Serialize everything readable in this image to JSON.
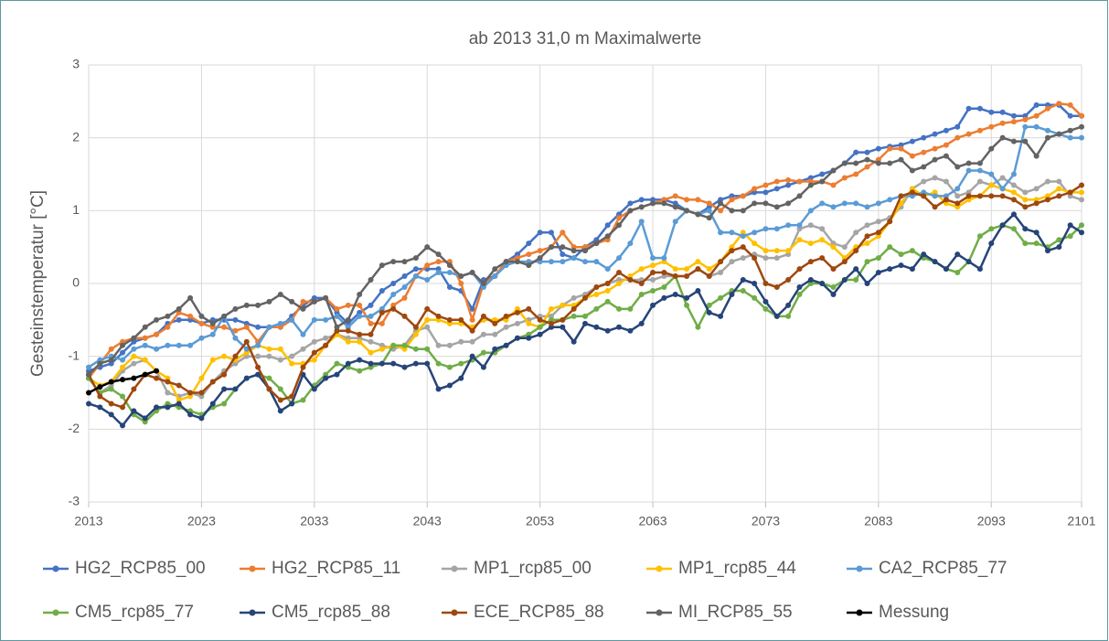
{
  "chart_data": {
    "type": "line",
    "title": "ab 2013    31,0 m Maximalwerte",
    "y_label": "Gesteinstemperatur [°C]",
    "x": [
      2013,
      2014,
      2015,
      2016,
      2017,
      2018,
      2019,
      2020,
      2021,
      2022,
      2023,
      2024,
      2025,
      2026,
      2027,
      2028,
      2029,
      2030,
      2031,
      2032,
      2033,
      2034,
      2035,
      2036,
      2037,
      2038,
      2039,
      2040,
      2041,
      2042,
      2043,
      2044,
      2045,
      2046,
      2047,
      2048,
      2049,
      2050,
      2051,
      2052,
      2053,
      2054,
      2055,
      2056,
      2057,
      2058,
      2059,
      2060,
      2061,
      2062,
      2063,
      2064,
      2065,
      2066,
      2067,
      2068,
      2069,
      2070,
      2071,
      2072,
      2073,
      2074,
      2075,
      2076,
      2077,
      2078,
      2079,
      2080,
      2081,
      2082,
      2083,
      2084,
      2085,
      2086,
      2087,
      2088,
      2089,
      2090,
      2091,
      2092,
      2093,
      2094,
      2095,
      2096,
      2097,
      2098,
      2099,
      2100,
      2101
    ],
    "xlim": [
      2013,
      2101
    ],
    "xticks": [
      2013,
      2023,
      2033,
      2043,
      2053,
      2063,
      2073,
      2083,
      2093,
      2101
    ],
    "ylim": [
      -3,
      3
    ],
    "yticks": [
      -3,
      -2,
      -1,
      0,
      1,
      2,
      3
    ],
    "grid": true,
    "legend": "bottom",
    "series": [
      {
        "name": "HG2_RCP85_00",
        "color": "#4472c4",
        "values": [
          -1.2,
          -1.15,
          -1.1,
          -0.95,
          -0.8,
          -0.75,
          -0.7,
          -0.55,
          -0.5,
          -0.5,
          -0.55,
          -0.5,
          -0.5,
          -0.5,
          -0.55,
          -0.6,
          -0.6,
          -0.6,
          -0.45,
          -0.3,
          -0.2,
          -0.2,
          -0.4,
          -0.55,
          -0.4,
          -0.3,
          -0.1,
          0.0,
          0.1,
          0.2,
          0.2,
          0.2,
          -0.05,
          -0.1,
          -0.35,
          0.05,
          0.1,
          0.3,
          0.4,
          0.55,
          0.7,
          0.7,
          0.4,
          0.35,
          0.5,
          0.6,
          0.8,
          0.95,
          1.1,
          1.15,
          1.15,
          1.15,
          1.1,
          1.0,
          0.95,
          1.05,
          1.15,
          1.2,
          1.2,
          1.25,
          1.25,
          1.3,
          1.35,
          1.4,
          1.45,
          1.5,
          1.55,
          1.65,
          1.8,
          1.8,
          1.85,
          1.88,
          1.9,
          1.95,
          2.0,
          2.05,
          2.1,
          2.15,
          2.4,
          2.4,
          2.35,
          2.35,
          2.3,
          2.3,
          2.45,
          2.45,
          2.45,
          2.3,
          2.3
        ]
      },
      {
        "name": "HG2_RCP85_11",
        "color": "#ed7d31",
        "values": [
          -1.3,
          -1.1,
          -0.9,
          -0.8,
          -0.75,
          -0.75,
          -0.7,
          -0.6,
          -0.4,
          -0.45,
          -0.55,
          -0.6,
          -0.6,
          -0.65,
          -0.6,
          -0.8,
          -0.6,
          -0.6,
          -0.5,
          -0.25,
          -0.25,
          -0.2,
          -0.35,
          -0.3,
          -0.3,
          -0.55,
          -0.55,
          -0.3,
          -0.2,
          0.1,
          0.25,
          0.3,
          0.3,
          0.0,
          -0.5,
          0.0,
          0.1,
          0.3,
          0.35,
          0.4,
          0.45,
          0.5,
          0.7,
          0.5,
          0.5,
          0.55,
          0.6,
          0.9,
          1.0,
          1.05,
          1.1,
          1.15,
          1.2,
          1.15,
          1.15,
          1.1,
          1.0,
          1.15,
          1.2,
          1.3,
          1.35,
          1.4,
          1.42,
          1.4,
          1.4,
          1.4,
          1.35,
          1.45,
          1.5,
          1.6,
          1.7,
          1.85,
          1.85,
          1.75,
          1.8,
          1.85,
          1.9,
          2.0,
          2.05,
          2.1,
          2.15,
          2.2,
          2.22,
          2.25,
          2.3,
          2.4,
          2.47,
          2.45,
          2.3
        ]
      },
      {
        "name": "MP1_rcp85_00",
        "color": "#a5a5a5",
        "values": [
          -1.3,
          -1.5,
          -1.4,
          -1.2,
          -1.1,
          -1.05,
          -1.2,
          -1.5,
          -1.55,
          -1.5,
          -1.55,
          -1.35,
          -1.2,
          -1.1,
          -1.0,
          -1.0,
          -1.0,
          -1.05,
          -1.0,
          -0.9,
          -0.8,
          -0.75,
          -0.7,
          -0.75,
          -0.75,
          -0.8,
          -0.85,
          -0.9,
          -0.85,
          -0.65,
          -0.6,
          -0.85,
          -0.85,
          -0.8,
          -0.8,
          -0.7,
          -0.7,
          -0.6,
          -0.55,
          -0.5,
          -0.45,
          -0.45,
          -0.3,
          -0.2,
          -0.15,
          -0.05,
          0.0,
          0.05,
          0.05,
          0.05,
          0.05,
          0.1,
          0.1,
          0.1,
          0.2,
          0.1,
          0.15,
          0.3,
          0.35,
          0.4,
          0.35,
          0.35,
          0.4,
          0.75,
          0.8,
          0.75,
          0.55,
          0.5,
          0.7,
          0.8,
          0.85,
          0.9,
          1.05,
          1.3,
          1.4,
          1.45,
          1.4,
          1.2,
          1.25,
          1.4,
          1.35,
          1.45,
          1.35,
          1.25,
          1.3,
          1.4,
          1.4,
          1.2,
          1.15
        ]
      },
      {
        "name": "MP1_rcp85_44",
        "color": "#ffc000",
        "values": [
          -1.3,
          -1.4,
          -1.35,
          -1.15,
          -1.0,
          -1.05,
          -1.2,
          -1.3,
          -1.6,
          -1.55,
          -1.3,
          -1.05,
          -1.0,
          -1.05,
          -0.95,
          -0.85,
          -0.9,
          -0.9,
          -1.1,
          -1.1,
          -1.05,
          -0.85,
          -0.7,
          -0.8,
          -0.8,
          -0.95,
          -0.9,
          -0.85,
          -0.9,
          -0.7,
          -0.5,
          -0.5,
          -0.55,
          -0.55,
          -0.6,
          -0.5,
          -0.5,
          -0.5,
          -0.35,
          -0.55,
          -0.6,
          -0.35,
          -0.3,
          -0.3,
          -0.2,
          -0.15,
          -0.1,
          0.0,
          0.1,
          0.2,
          0.25,
          0.3,
          0.2,
          0.2,
          0.3,
          0.2,
          0.3,
          0.5,
          0.7,
          0.55,
          0.45,
          0.45,
          0.45,
          0.6,
          0.55,
          0.6,
          0.5,
          0.35,
          0.5,
          0.55,
          0.65,
          0.85,
          1.1,
          1.3,
          1.2,
          1.25,
          1.1,
          1.05,
          1.15,
          1.2,
          1.35,
          1.3,
          1.25,
          1.15,
          1.15,
          1.2,
          1.3,
          1.25,
          1.25
        ]
      },
      {
        "name": "CA2_RCP85_77",
        "color": "#5b9bd5",
        "values": [
          -1.15,
          -1.05,
          -1.0,
          -1.05,
          -0.9,
          -0.85,
          -0.9,
          -0.85,
          -0.85,
          -0.85,
          -0.75,
          -0.7,
          -0.45,
          -0.75,
          -0.9,
          -0.85,
          -0.6,
          -0.55,
          -0.5,
          -0.7,
          -0.5,
          -0.5,
          -0.45,
          -0.6,
          -0.45,
          -0.45,
          -0.35,
          -0.15,
          -0.05,
          0.1,
          0.05,
          0.15,
          0.15,
          0.1,
          0.15,
          -0.05,
          0.1,
          0.25,
          0.3,
          0.3,
          0.3,
          0.3,
          0.3,
          0.35,
          0.3,
          0.3,
          0.2,
          0.35,
          0.55,
          0.85,
          0.35,
          0.35,
          0.85,
          1.0,
          0.95,
          1.0,
          0.7,
          0.7,
          0.65,
          0.7,
          0.75,
          0.75,
          0.8,
          0.8,
          1.0,
          1.1,
          1.05,
          1.1,
          1.1,
          1.05,
          1.1,
          1.15,
          1.2,
          1.2,
          1.25,
          1.2,
          1.2,
          1.3,
          1.55,
          1.55,
          1.5,
          1.3,
          1.5,
          2.15,
          2.15,
          2.1,
          2.05,
          2.0,
          2.0
        ]
      },
      {
        "name": "CM5_rcp85_77",
        "color": "#70ad47",
        "values": [
          -1.3,
          -1.5,
          -1.45,
          -1.55,
          -1.8,
          -1.9,
          -1.75,
          -1.65,
          -1.7,
          -1.75,
          -1.8,
          -1.7,
          -1.65,
          -1.45,
          -1.3,
          -1.25,
          -1.3,
          -1.45,
          -1.65,
          -1.6,
          -1.4,
          -1.25,
          -1.1,
          -1.15,
          -1.2,
          -1.15,
          -1.1,
          -0.85,
          -0.85,
          -0.9,
          -0.9,
          -1.1,
          -1.15,
          -1.1,
          -1.05,
          -0.95,
          -0.95,
          -0.85,
          -0.75,
          -0.7,
          -0.6,
          -0.5,
          -0.5,
          -0.45,
          -0.45,
          -0.35,
          -0.25,
          -0.35,
          -0.35,
          -0.15,
          -0.1,
          -0.05,
          0.1,
          -0.3,
          -0.6,
          -0.3,
          -0.2,
          -0.1,
          -0.1,
          -0.2,
          -0.35,
          -0.45,
          -0.45,
          -0.15,
          0.0,
          0.0,
          -0.05,
          0.05,
          0.05,
          0.3,
          0.35,
          0.5,
          0.4,
          0.45,
          0.35,
          0.3,
          0.2,
          0.15,
          0.3,
          0.65,
          0.75,
          0.8,
          0.75,
          0.55,
          0.55,
          0.5,
          0.6,
          0.65,
          0.8
        ]
      },
      {
        "name": "CM5_rcp85_88",
        "color": "#264478",
        "values": [
          -1.65,
          -1.7,
          -1.8,
          -1.95,
          -1.75,
          -1.85,
          -1.7,
          -1.7,
          -1.65,
          -1.8,
          -1.85,
          -1.65,
          -1.45,
          -1.45,
          -1.3,
          -1.25,
          -1.45,
          -1.75,
          -1.65,
          -1.25,
          -1.45,
          -1.3,
          -1.25,
          -1.1,
          -1.05,
          -1.1,
          -1.1,
          -1.1,
          -1.15,
          -1.1,
          -1.1,
          -1.45,
          -1.4,
          -1.3,
          -1.0,
          -1.15,
          -0.9,
          -0.85,
          -0.75,
          -0.75,
          -0.7,
          -0.6,
          -0.6,
          -0.8,
          -0.55,
          -0.6,
          -0.65,
          -0.6,
          -0.65,
          -0.55,
          -0.3,
          -0.2,
          -0.15,
          -0.2,
          -0.1,
          -0.4,
          -0.45,
          -0.15,
          0.05,
          0.0,
          -0.25,
          -0.45,
          -0.3,
          -0.05,
          0.05,
          0.0,
          -0.15,
          0.05,
          0.2,
          0.0,
          0.15,
          0.2,
          0.25,
          0.2,
          0.4,
          0.3,
          0.2,
          0.4,
          0.3,
          0.2,
          0.55,
          0.8,
          0.95,
          0.75,
          0.7,
          0.45,
          0.5,
          0.8,
          0.7
        ]
      },
      {
        "name": "ECE_RCP85_88",
        "color": "#9e480e",
        "values": [
          -1.25,
          -1.55,
          -1.65,
          -1.7,
          -1.45,
          -1.25,
          -1.3,
          -1.35,
          -1.4,
          -1.5,
          -1.5,
          -1.35,
          -1.25,
          -1.0,
          -0.8,
          -1.15,
          -1.45,
          -1.6,
          -1.55,
          -1.15,
          -0.95,
          -0.85,
          -0.65,
          -0.65,
          -0.7,
          -0.7,
          -0.4,
          -0.35,
          -0.45,
          -0.6,
          -0.35,
          -0.45,
          -0.5,
          -0.5,
          -0.65,
          -0.45,
          -0.55,
          -0.45,
          -0.4,
          -0.35,
          -0.5,
          -0.55,
          -0.5,
          -0.35,
          -0.2,
          -0.05,
          0.0,
          0.15,
          0.05,
          0.0,
          0.15,
          0.15,
          0.1,
          0.1,
          0.2,
          0.1,
          0.3,
          0.45,
          0.5,
          0.35,
          0.0,
          -0.05,
          0.05,
          0.2,
          0.3,
          0.35,
          0.2,
          0.3,
          0.45,
          0.65,
          0.7,
          0.85,
          1.2,
          1.25,
          1.2,
          1.05,
          1.15,
          1.1,
          1.2,
          1.2,
          1.2,
          1.2,
          1.15,
          1.05,
          1.1,
          1.15,
          1.2,
          1.25,
          1.35
        ]
      },
      {
        "name": "MI_RCP85_55",
        "color": "#636363",
        "values": [
          -1.25,
          -1.1,
          -1.05,
          -0.85,
          -0.75,
          -0.6,
          -0.5,
          -0.45,
          -0.35,
          -0.2,
          -0.45,
          -0.55,
          -0.45,
          -0.35,
          -0.3,
          -0.3,
          -0.25,
          -0.15,
          -0.25,
          -0.35,
          -0.25,
          -0.2,
          -0.6,
          -0.5,
          -0.15,
          0.05,
          0.25,
          0.3,
          0.3,
          0.35,
          0.5,
          0.4,
          0.25,
          0.1,
          0.15,
          0.0,
          0.2,
          0.3,
          0.3,
          0.25,
          0.35,
          0.5,
          0.5,
          0.45,
          0.45,
          0.55,
          0.65,
          0.8,
          1.0,
          1.05,
          1.1,
          1.1,
          1.05,
          1.0,
          0.95,
          0.9,
          1.1,
          1.0,
          1.0,
          1.1,
          1.1,
          1.05,
          1.1,
          1.2,
          1.35,
          1.4,
          1.55,
          1.65,
          1.65,
          1.7,
          1.65,
          1.65,
          1.7,
          1.55,
          1.6,
          1.7,
          1.75,
          1.6,
          1.65,
          1.65,
          1.85,
          2.0,
          1.95,
          1.95,
          1.75,
          2.0,
          2.05,
          2.1,
          2.15
        ]
      },
      {
        "name": "Messung",
        "color": "#000000",
        "values": [
          -1.5,
          -1.42,
          -1.35,
          -1.32,
          -1.3,
          -1.25,
          -1.2,
          null,
          null,
          null,
          null,
          null,
          null,
          null,
          null,
          null,
          null,
          null,
          null,
          null,
          null,
          null,
          null,
          null,
          null,
          null,
          null,
          null,
          null,
          null,
          null,
          null,
          null,
          null,
          null,
          null,
          null,
          null,
          null,
          null,
          null,
          null,
          null,
          null,
          null,
          null,
          null,
          null,
          null,
          null,
          null,
          null,
          null,
          null,
          null,
          null,
          null,
          null,
          null,
          null,
          null,
          null,
          null,
          null,
          null,
          null,
          null,
          null,
          null,
          null,
          null,
          null,
          null,
          null,
          null,
          null,
          null,
          null,
          null,
          null,
          null,
          null,
          null,
          null,
          null,
          null,
          null,
          null,
          null
        ]
      }
    ]
  }
}
